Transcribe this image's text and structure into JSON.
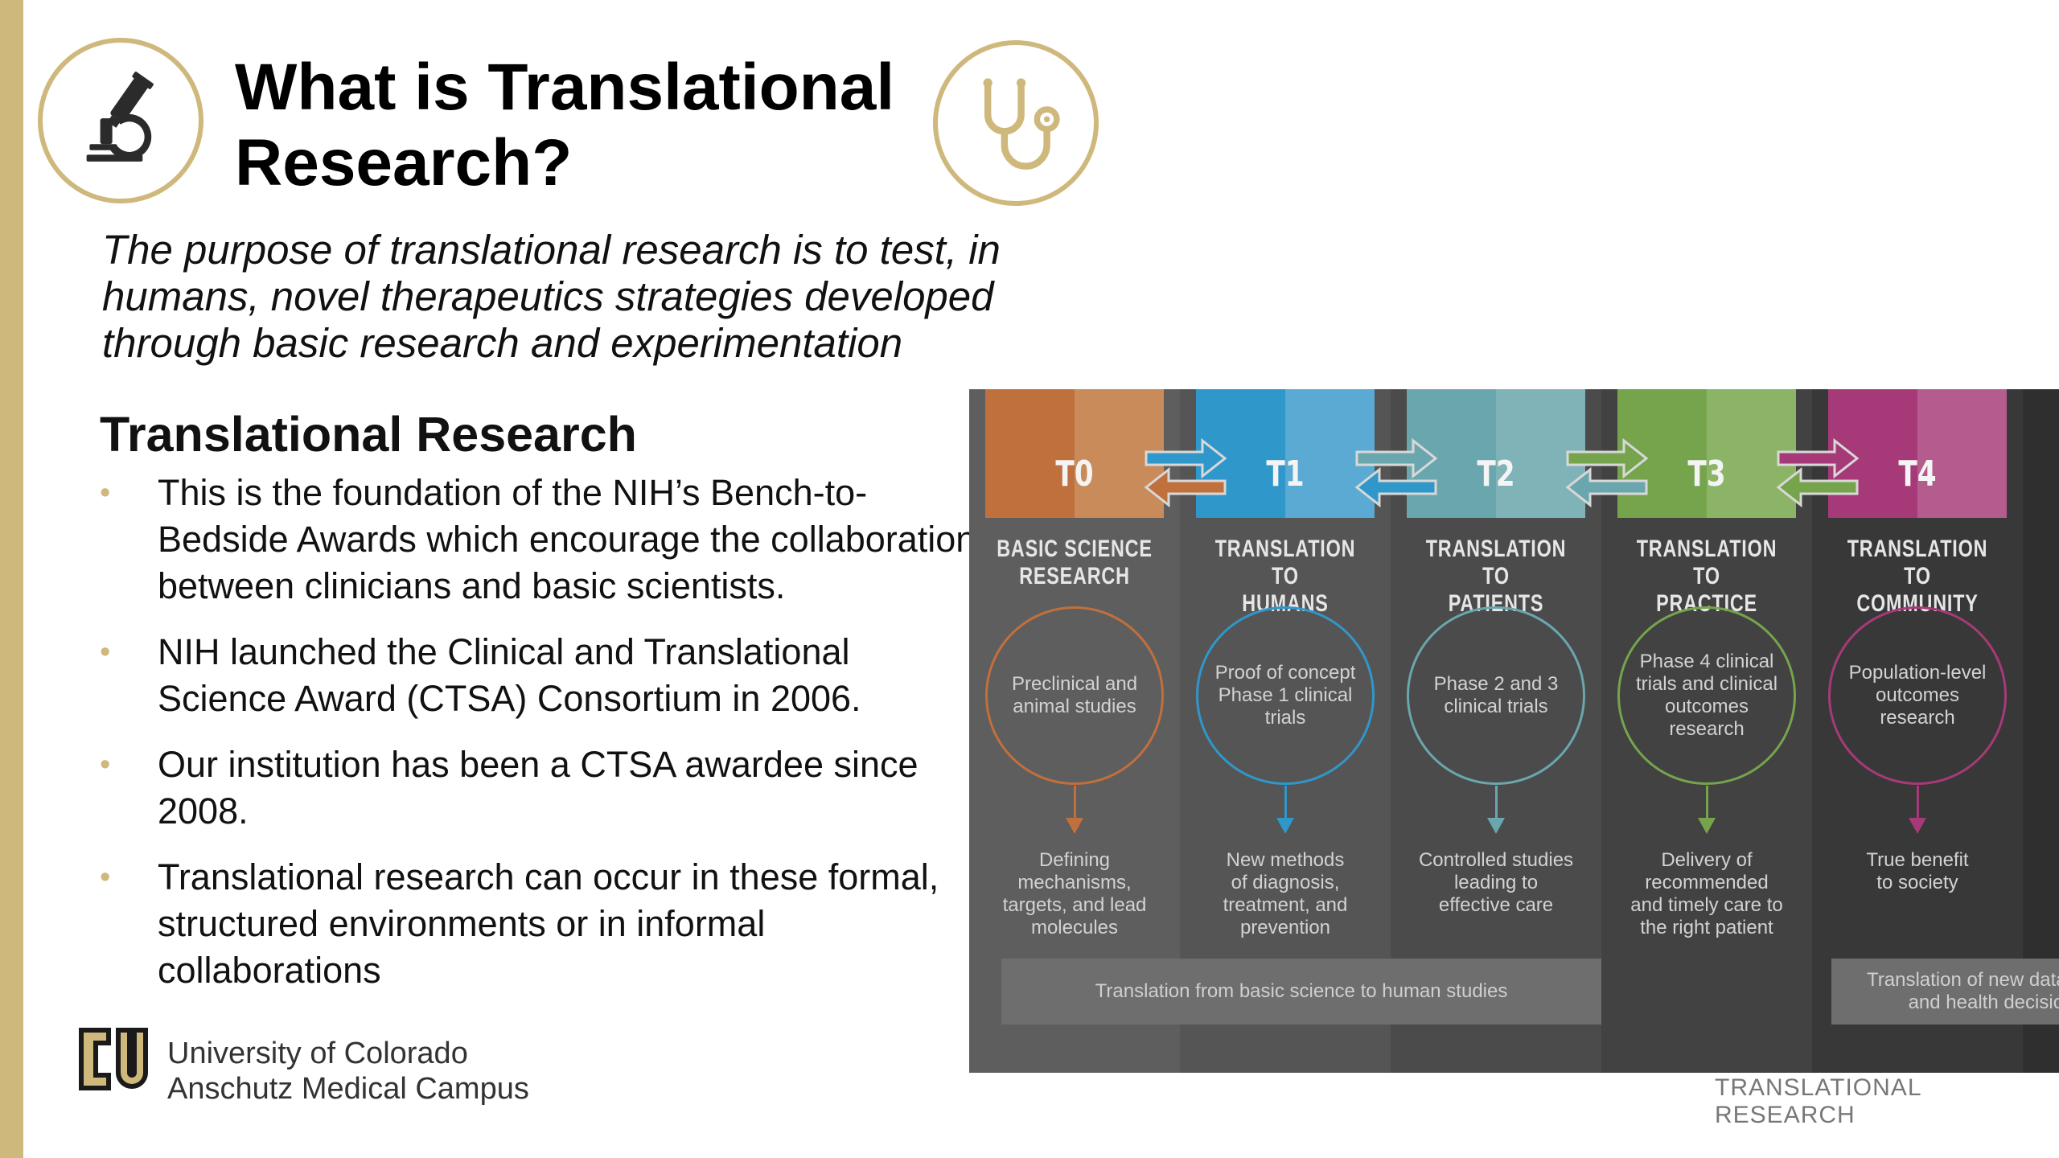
{
  "slide": {
    "title_line1": "What is Translational",
    "title_line2": "Research?",
    "subtitle": "The purpose of translational research is to test, in humans, novel therapeutics strategies developed through basic research and experimentation",
    "section_heading": "Translational Research",
    "bullets": [
      "This is the foundation of the NIH’s Bench-to-\nBedside Awards which encourage the collaboration\nbetween clinicians and basic scientists.",
      "NIH launched the Clinical and Translational\nScience Award (CTSA) Consortium in 2006.",
      "Our institution has been a CTSA awardee since\n2008.",
      "Translational research can occur in these formal,\nstructured environments or in informal\ncollaborations"
    ],
    "university_name": "University of Colorado\nAnschutz Medical Campus",
    "footer_label": "TRANSLATIONAL RESEARCH",
    "icons": {
      "left": "microscope-icon",
      "right": "stethoscope-icon",
      "logo": "cu-logo"
    },
    "brand_color": "#cfb87c"
  },
  "infographic": {
    "phases": [
      {
        "label": "T0",
        "name": "BASIC SCIENCE\nRESEARCH",
        "circle_text": "Preclinical and animal studies",
        "outcome": "Defining\nmechanisms,\ntargets, and lead\nmolecules",
        "color": "#c0703d",
        "color_light": "#c98b5a"
      },
      {
        "label": "T1",
        "name": "TRANSLATION TO\nHUMANS",
        "circle_text": "Proof of concept Phase 1 clinical trials",
        "outcome": "New methods\nof diagnosis,\ntreatment, and\nprevention",
        "color": "#2f97c9",
        "color_light": "#5aaad3"
      },
      {
        "label": "T2",
        "name": "TRANSLATION TO\nPATIENTS",
        "circle_text": "Phase 2 and 3 clinical trials",
        "outcome": "Controlled studies\nleading to\neffective care",
        "color": "#6aa6ad",
        "color_light": "#80b3b8"
      },
      {
        "label": "T3",
        "name": "TRANSLATION TO\nPRACTICE",
        "circle_text": "Phase 4 clinical trials and clinical outcomes research",
        "outcome": "Delivery of\nrecommended\nand timely care to\nthe right patient",
        "color": "#75a44d",
        "color_light": "#8cb466"
      },
      {
        "label": "T4",
        "name": "TRANSLATION TO\nCOMMUNITY",
        "circle_text": "Population-level outcomes research",
        "outcome": "True benefit\nto society",
        "color": "#a63a78",
        "color_light": "#b45c8d"
      }
    ],
    "bottom_left": "Translation from basic science to human studies",
    "bottom_right": "Translation of new data into the clinic\nand health decision making"
  }
}
